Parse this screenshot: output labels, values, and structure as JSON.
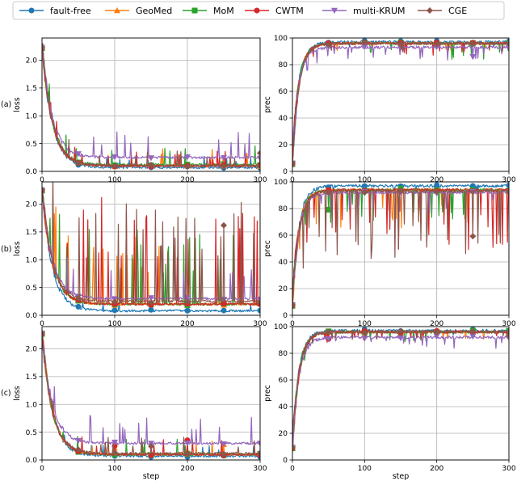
{
  "legend": [
    {
      "name": "fault-free",
      "color": "#1f77b4",
      "marker": "circle"
    },
    {
      "name": "GeoMed",
      "color": "#ff7f0e",
      "marker": "triangle-up"
    },
    {
      "name": "MoM",
      "color": "#2ca02c",
      "marker": "square"
    },
    {
      "name": "CWTM",
      "color": "#d62728",
      "marker": "circle"
    },
    {
      "name": "multi-KRUM",
      "color": "#9467bd",
      "marker": "triangle-down"
    },
    {
      "name": "CGE",
      "color": "#8c564b",
      "marker": "diamond"
    }
  ],
  "rows": [
    {
      "label": "(a)"
    },
    {
      "label": "(b)"
    },
    {
      "label": "(c)"
    }
  ],
  "chart_data": [
    {
      "type": "line",
      "row": "(a)",
      "metric": "loss",
      "xlabel": "",
      "ylabel": "loss",
      "xlim": [
        0,
        300
      ],
      "ylim": [
        0,
        2.4
      ],
      "xticks": [
        "0",
        "100",
        "200",
        "300"
      ],
      "yticks": [
        "0.0",
        "0.5",
        "1.0",
        "1.5",
        "2.0"
      ],
      "grid": true,
      "series": [
        {
          "name": "fault-free",
          "start": 2.3,
          "end": 0.07,
          "spike_prob": 0.02,
          "spike_mag": 0.2
        },
        {
          "name": "GeoMed",
          "start": 2.3,
          "end": 0.1,
          "spike_prob": 0.03,
          "spike_mag": 0.3
        },
        {
          "name": "MoM",
          "start": 2.3,
          "end": 0.12,
          "spike_prob": 0.04,
          "spike_mag": 0.4
        },
        {
          "name": "CWTM",
          "start": 2.3,
          "end": 0.1,
          "spike_prob": 0.03,
          "spike_mag": 0.3
        },
        {
          "name": "multi-KRUM",
          "start": 2.3,
          "end": 0.25,
          "spike_prob": 0.04,
          "spike_mag": 0.5
        },
        {
          "name": "CGE",
          "start": 2.3,
          "end": 0.1,
          "spike_prob": 0.03,
          "spike_mag": 0.3
        }
      ]
    },
    {
      "type": "line",
      "row": "(a)",
      "metric": "prec",
      "xlabel": "",
      "ylabel": "prec",
      "xlim": [
        0,
        300
      ],
      "ylim": [
        0,
        100
      ],
      "xticks": [
        "0",
        "100",
        "200",
        "300"
      ],
      "yticks": [
        "0",
        "20",
        "40",
        "60",
        "80",
        "100"
      ],
      "grid": true,
      "series": [
        {
          "name": "fault-free",
          "start": 10,
          "end": 97,
          "spike_prob": 0.02,
          "spike_mag": 5
        },
        {
          "name": "GeoMed",
          "start": 10,
          "end": 96,
          "spike_prob": 0.03,
          "spike_mag": 6
        },
        {
          "name": "MoM",
          "start": 10,
          "end": 96,
          "spike_prob": 0.04,
          "spike_mag": 12
        },
        {
          "name": "CWTM",
          "start": 10,
          "end": 96,
          "spike_prob": 0.03,
          "spike_mag": 8
        },
        {
          "name": "multi-KRUM",
          "start": 10,
          "end": 93,
          "spike_prob": 0.05,
          "spike_mag": 10
        },
        {
          "name": "CGE",
          "start": 10,
          "end": 96,
          "spike_prob": 0.03,
          "spike_mag": 6
        }
      ]
    },
    {
      "type": "line",
      "row": "(b)",
      "metric": "loss",
      "xlabel": "",
      "ylabel": "loss",
      "xlim": [
        0,
        300
      ],
      "ylim": [
        0,
        2.4
      ],
      "xticks": [
        "0",
        "100",
        "200",
        "300"
      ],
      "yticks": [
        "0.0",
        "0.5",
        "1.0",
        "1.5",
        "2.0"
      ],
      "grid": true,
      "series": [
        {
          "name": "fault-free",
          "start": 2.3,
          "end": 0.08,
          "spike_prob": 0.02,
          "spike_mag": 0.15
        },
        {
          "name": "GeoMed",
          "start": 2.3,
          "end": 0.2,
          "spike_prob": 0.06,
          "spike_mag": 1.3
        },
        {
          "name": "MoM",
          "start": 2.3,
          "end": 0.2,
          "spike_prob": 0.07,
          "spike_mag": 1.4
        },
        {
          "name": "CWTM",
          "start": 2.3,
          "end": 0.2,
          "spike_prob": 0.08,
          "spike_mag": 2.0
        },
        {
          "name": "multi-KRUM",
          "start": 2.3,
          "end": 0.3,
          "spike_prob": 0.05,
          "spike_mag": 0.6
        },
        {
          "name": "CGE",
          "start": 2.3,
          "end": 0.25,
          "spike_prob": 0.08,
          "spike_mag": 1.8
        }
      ]
    },
    {
      "type": "line",
      "row": "(b)",
      "metric": "prec",
      "xlabel": "",
      "ylabel": "prec",
      "xlim": [
        0,
        300
      ],
      "ylim": [
        0,
        100
      ],
      "xticks": [
        "0",
        "100",
        "200",
        "300"
      ],
      "yticks": [
        "0",
        "20",
        "40",
        "60",
        "80",
        "100"
      ],
      "grid": true,
      "series": [
        {
          "name": "fault-free",
          "start": 10,
          "end": 97,
          "spike_prob": 0.02,
          "spike_mag": 5
        },
        {
          "name": "GeoMed",
          "start": 10,
          "end": 94,
          "spike_prob": 0.06,
          "spike_mag": 30
        },
        {
          "name": "MoM",
          "start": 10,
          "end": 94,
          "spike_prob": 0.07,
          "spike_mag": 25
        },
        {
          "name": "CWTM",
          "start": 10,
          "end": 94,
          "spike_prob": 0.08,
          "spike_mag": 45
        },
        {
          "name": "multi-KRUM",
          "start": 10,
          "end": 92,
          "spike_prob": 0.05,
          "spike_mag": 15
        },
        {
          "name": "CGE",
          "start": 10,
          "end": 93,
          "spike_prob": 0.08,
          "spike_mag": 50
        }
      ]
    },
    {
      "type": "line",
      "row": "(c)",
      "metric": "loss",
      "xlabel": "step",
      "ylabel": "loss",
      "xlim": [
        0,
        300
      ],
      "ylim": [
        0,
        2.4
      ],
      "xticks": [
        "0",
        "100",
        "200",
        "300"
      ],
      "yticks": [
        "0.0",
        "0.5",
        "1.0",
        "1.5",
        "2.0"
      ],
      "grid": true,
      "series": [
        {
          "name": "fault-free",
          "start": 2.3,
          "end": 0.07,
          "spike_prob": 0.02,
          "spike_mag": 0.2
        },
        {
          "name": "GeoMed",
          "start": 2.3,
          "end": 0.1,
          "spike_prob": 0.03,
          "spike_mag": 0.25
        },
        {
          "name": "MoM",
          "start": 2.3,
          "end": 0.1,
          "spike_prob": 0.03,
          "spike_mag": 0.3
        },
        {
          "name": "CWTM",
          "start": 2.3,
          "end": 0.1,
          "spike_prob": 0.03,
          "spike_mag": 0.3
        },
        {
          "name": "multi-KRUM",
          "start": 2.3,
          "end": 0.3,
          "spike_prob": 0.04,
          "spike_mag": 0.5
        },
        {
          "name": "CGE",
          "start": 2.3,
          "end": 0.12,
          "spike_prob": 0.03,
          "spike_mag": 0.3
        }
      ]
    },
    {
      "type": "line",
      "row": "(c)",
      "metric": "prec",
      "xlabel": "step",
      "ylabel": "prec",
      "xlim": [
        0,
        300
      ],
      "ylim": [
        0,
        100
      ],
      "xticks": [
        "0",
        "100",
        "200",
        "300"
      ],
      "yticks": [
        "0",
        "20",
        "40",
        "60",
        "80",
        "100"
      ],
      "grid": true,
      "series": [
        {
          "name": "fault-free",
          "start": 10,
          "end": 97,
          "spike_prob": 0.02,
          "spike_mag": 5
        },
        {
          "name": "GeoMed",
          "start": 10,
          "end": 96,
          "spike_prob": 0.03,
          "spike_mag": 6
        },
        {
          "name": "MoM",
          "start": 10,
          "end": 96,
          "spike_prob": 0.03,
          "spike_mag": 8
        },
        {
          "name": "CWTM",
          "start": 10,
          "end": 96,
          "spike_prob": 0.03,
          "spike_mag": 7
        },
        {
          "name": "multi-KRUM",
          "start": 10,
          "end": 92,
          "spike_prob": 0.05,
          "spike_mag": 8
        },
        {
          "name": "CGE",
          "start": 10,
          "end": 96,
          "spike_prob": 0.03,
          "spike_mag": 6
        }
      ]
    }
  ]
}
